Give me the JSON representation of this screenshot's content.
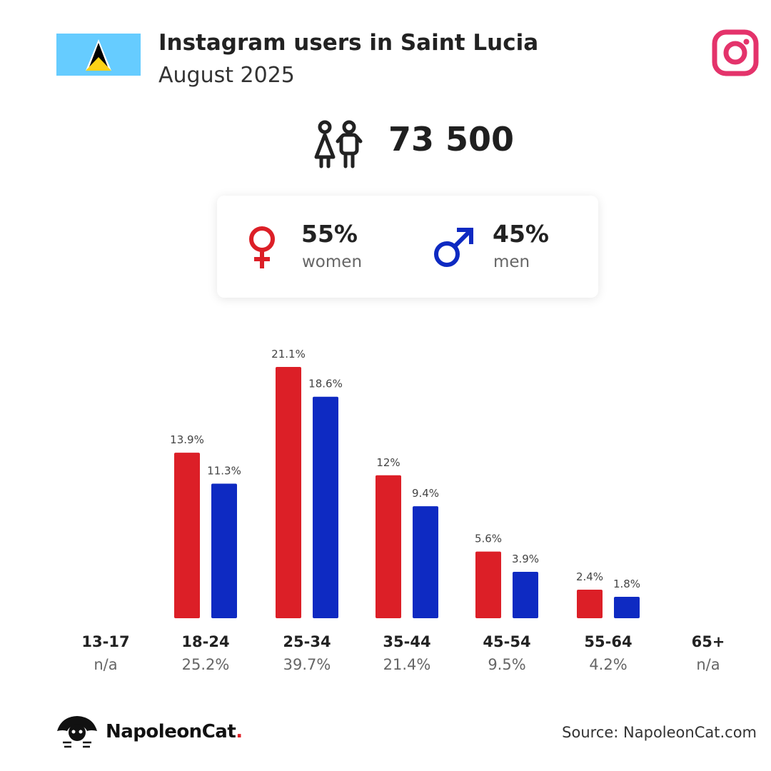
{
  "header": {
    "title": "Instagram users in Saint Lucia",
    "subtitle": "August 2025"
  },
  "summary": {
    "total_users": "73 500"
  },
  "gender": {
    "women_pct": "55%",
    "women_label": "women",
    "men_pct": "45%",
    "men_label": "men"
  },
  "colors": {
    "women": "#dc1f27",
    "men": "#0e2ac2",
    "instagram": "#e4336b",
    "flag_blue": "#66ccff",
    "flag_yellow": "#fcd116"
  },
  "chart_data": {
    "type": "bar",
    "categories": [
      "13-17",
      "18-24",
      "25-34",
      "35-44",
      "45-54",
      "55-64",
      "65+"
    ],
    "category_totals": [
      "n/a",
      "25.2%",
      "39.7%",
      "21.4%",
      "9.5%",
      "4.2%",
      "n/a"
    ],
    "series": [
      {
        "name": "women",
        "values": [
          null,
          13.9,
          21.1,
          12,
          5.6,
          2.4,
          null
        ],
        "labels": [
          "",
          "13.9%",
          "21.1%",
          "12%",
          "5.6%",
          "2.4%",
          ""
        ]
      },
      {
        "name": "men",
        "values": [
          null,
          11.3,
          18.6,
          9.4,
          3.9,
          1.8,
          null
        ],
        "labels": [
          "",
          "11.3%",
          "18.6%",
          "9.4%",
          "3.9%",
          "1.8%",
          ""
        ]
      }
    ],
    "unit": "%",
    "ylim": [
      0,
      21.1
    ],
    "grid": false,
    "legend": "none"
  },
  "footer": {
    "brand": "NapoleonCat",
    "brand_dot": ".",
    "source": "Source: NapoleonCat.com"
  }
}
